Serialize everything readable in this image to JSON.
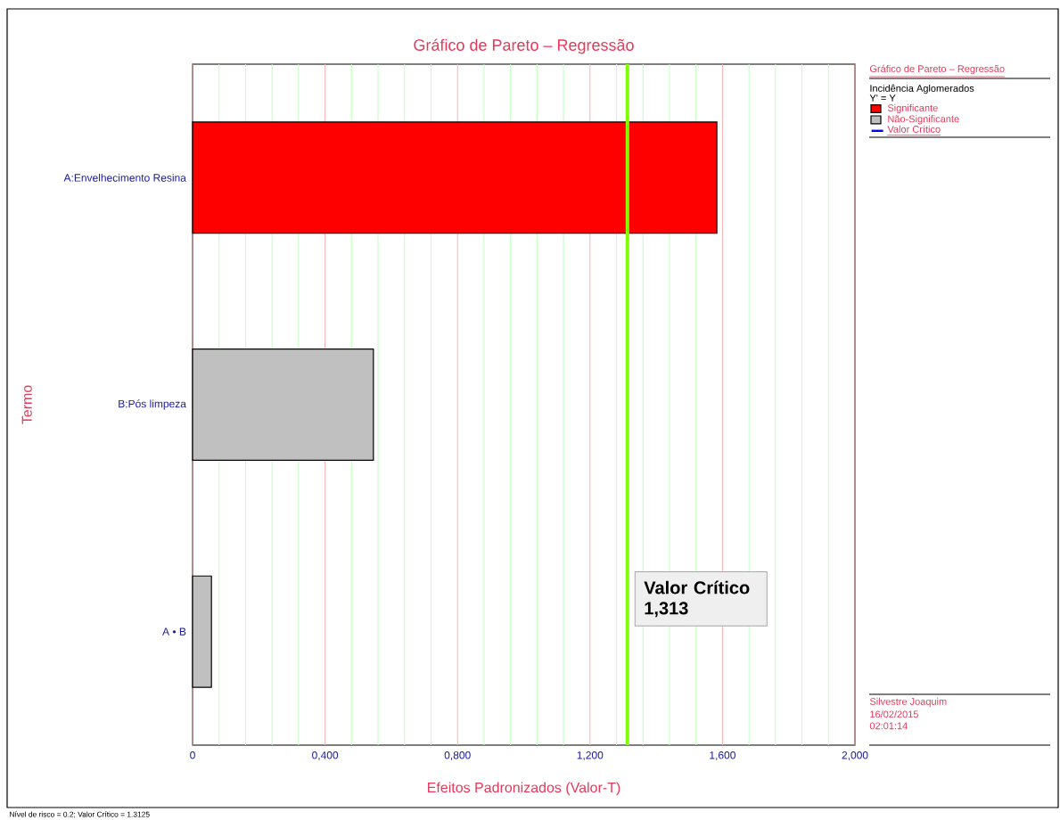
{
  "chart_data": {
    "type": "bar",
    "orientation": "horizontal",
    "title": "Gráfico de Pareto – Regressão",
    "xlabel": "Efeitos Padronizados (Valor-T)",
    "ylabel": "Termo",
    "legend_title": "Incidência Aglomerados",
    "categories": [
      "A:Envelhecimento Resina",
      "B:Pós limpeza",
      "A • B"
    ],
    "series": [
      {
        "name": "Significante",
        "color": "#ff0000",
        "values": [
          1.583,
          null,
          null
        ]
      },
      {
        "name": "Não-Significante",
        "color": "#c0c0c0",
        "values": [
          null,
          0.546,
          0.057
        ]
      }
    ],
    "xlim": [
      0,
      2
    ],
    "xticks": [
      0,
      {
        "value": 0.08,
        "label": null
      },
      {
        "value": 0.16,
        "label": null
      },
      {
        "value": 0.24,
        "label": null
      },
      {
        "value": 0.32,
        "label": null
      },
      {
        "value": 0.4,
        "label": "0,400"
      },
      {
        "value": 0.48,
        "label": null
      },
      {
        "value": 0.56,
        "label": null
      },
      {
        "value": 0.64,
        "label": null
      },
      {
        "value": 0.72,
        "label": null
      },
      {
        "value": 0.8,
        "label": "0,800"
      },
      {
        "value": 0.88,
        "label": null
      },
      {
        "value": 0.96,
        "label": null
      },
      {
        "value": 1.04,
        "label": null
      },
      {
        "value": 1.12,
        "label": null
      },
      {
        "value": 1.2,
        "label": "1,200"
      },
      {
        "value": 1.28,
        "label": null
      },
      {
        "value": 1.36,
        "label": null
      },
      {
        "value": 1.44,
        "label": null
      },
      {
        "value": 1.52,
        "label": null
      },
      {
        "value": 1.6,
        "label": "1,600"
      },
      {
        "value": 1.68,
        "label": null
      },
      {
        "value": 1.76,
        "label": null
      },
      {
        "value": 1.84,
        "label": null
      },
      {
        "value": 1.92,
        "label": null
      },
      {
        "value": 2,
        "label": "2,000"
      }
    ],
    "grid": "x",
    "legend": "right",
    "ref_lines": [
      {
        "axis": "x",
        "value": 1.313,
        "label": "Valor Crítico 1,313",
        "color": "#80ff00"
      }
    ],
    "annotations": [
      "Gráfico de Pareto – Regressão",
      "Y' = Y",
      "Valor Crítico",
      "Silvestre Joaquim",
      "16/02/2015",
      "02:01:14",
      "Nível de risco = 0.2; Valor Crítico = 1.3125"
    ]
  }
}
